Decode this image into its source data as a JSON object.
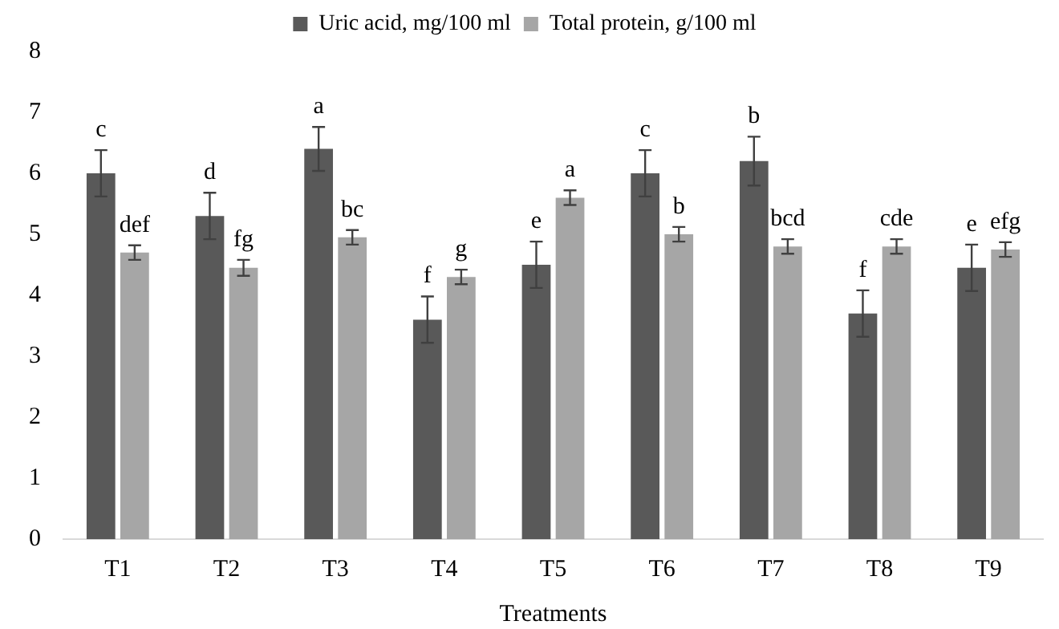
{
  "chart_data": {
    "type": "bar",
    "xlabel": "Treatments",
    "categories": [
      "T1",
      "T2",
      "T3",
      "T4",
      "T5",
      "T6",
      "T7",
      "T8",
      "T9"
    ],
    "series": [
      {
        "name": "Uric acid, mg/100 ml",
        "color": "#595959",
        "values": [
          6.0,
          5.3,
          6.4,
          3.6,
          4.5,
          6.0,
          6.2,
          3.7,
          4.45
        ],
        "errors": [
          0.38,
          0.38,
          0.36,
          0.38,
          0.38,
          0.38,
          0.4,
          0.38,
          0.38
        ],
        "value_labels": [
          "c",
          "d",
          "a",
          "f",
          "e",
          "c",
          "b",
          "f",
          "e"
        ]
      },
      {
        "name": "Total protein, g/100 ml",
        "color": "#a6a6a6",
        "values": [
          4.7,
          4.45,
          4.95,
          4.3,
          5.6,
          5.0,
          4.8,
          4.8,
          4.75
        ],
        "errors": [
          0.12,
          0.13,
          0.12,
          0.12,
          0.12,
          0.12,
          0.12,
          0.12,
          0.12
        ],
        "value_labels": [
          "def",
          "fg",
          "bc",
          "g",
          "a",
          "b",
          "bcd",
          "cde",
          "efg"
        ]
      }
    ],
    "ylim": [
      0,
      8
    ],
    "yticks": [
      0,
      1,
      2,
      3,
      4,
      5,
      6,
      7,
      8
    ],
    "grid": false,
    "legend": "top"
  }
}
